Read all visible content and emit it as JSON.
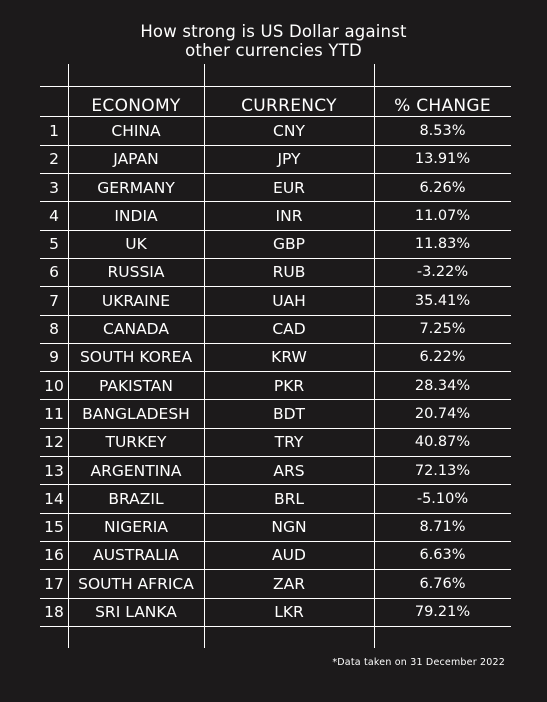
{
  "title_lines": [
    "How strong is US Dollar against",
    "other currencies YTD"
  ],
  "headers": {
    "economy": "ECONOMY",
    "currency": "CURRENCY",
    "change": "% CHANGE"
  },
  "rows": [
    {
      "n": "1",
      "economy": "CHINA",
      "currency": "CNY",
      "change": "8.53%"
    },
    {
      "n": "2",
      "economy": "JAPAN",
      "currency": "JPY",
      "change": "13.91%"
    },
    {
      "n": "3",
      "economy": "GERMANY",
      "currency": "EUR",
      "change": "6.26%"
    },
    {
      "n": "4",
      "economy": "INDIA",
      "currency": "INR",
      "change": "11.07%"
    },
    {
      "n": "5",
      "economy": "UK",
      "currency": "GBP",
      "change": "11.83%"
    },
    {
      "n": "6",
      "economy": "RUSSIA",
      "currency": "RUB",
      "change": "-3.22%"
    },
    {
      "n": "7",
      "economy": "UKRAINE",
      "currency": "UAH",
      "change": "35.41%"
    },
    {
      "n": "8",
      "economy": "CANADA",
      "currency": "CAD",
      "change": "7.25%"
    },
    {
      "n": "9",
      "economy": "SOUTH KOREA",
      "currency": "KRW",
      "change": "6.22%"
    },
    {
      "n": "10",
      "economy": "PAKISTAN",
      "currency": "PKR",
      "change": "28.34%"
    },
    {
      "n": "11",
      "economy": "BANGLADESH",
      "currency": "BDT",
      "change": "20.74%"
    },
    {
      "n": "12",
      "economy": "TURKEY",
      "currency": "TRY",
      "change": "40.87%"
    },
    {
      "n": "13",
      "economy": "ARGENTINA",
      "currency": "ARS",
      "change": "72.13%"
    },
    {
      "n": "14",
      "economy": "BRAZIL",
      "currency": "BRL",
      "change": "-5.10%"
    },
    {
      "n": "15",
      "economy": "NIGERIA",
      "currency": "NGN",
      "change": "8.71%"
    },
    {
      "n": "16",
      "economy": "AUSTRALIA",
      "currency": "AUD",
      "change": "6.63%"
    },
    {
      "n": "17",
      "economy": "SOUTH AFRICA",
      "currency": "ZAR",
      "change": "6.76%"
    },
    {
      "n": "18",
      "economy": "SRI LANKA",
      "currency": "LKR",
      "change": "79.21%"
    }
  ],
  "footnote": "*Data  taken on 31 December  2022",
  "colors": {
    "background": "#1c1a1b",
    "text": "#ffffff",
    "lines": "#ffffff"
  },
  "chart_data": {
    "type": "table",
    "title": "How strong is US Dollar against other currencies YTD",
    "columns": [
      "",
      "ECONOMY",
      "CURRENCY",
      "% CHANGE"
    ],
    "categories": [
      "CHINA",
      "JAPAN",
      "GERMANY",
      "INDIA",
      "UK",
      "RUSSIA",
      "UKRAINE",
      "CANADA",
      "SOUTH KOREA",
      "PAKISTAN",
      "BANGLADESH",
      "TURKEY",
      "ARGENTINA",
      "BRAZIL",
      "NIGERIA",
      "AUSTRALIA",
      "SOUTH AFRICA",
      "SRI LANKA"
    ],
    "currencies": [
      "CNY",
      "JPY",
      "EUR",
      "INR",
      "GBP",
      "RUB",
      "UAH",
      "CAD",
      "KRW",
      "PKR",
      "BDT",
      "TRY",
      "ARS",
      "BRL",
      "NGN",
      "AUD",
      "ZAR",
      "LKR"
    ],
    "values": [
      8.53,
      13.91,
      6.26,
      11.07,
      11.83,
      -3.22,
      35.41,
      7.25,
      6.22,
      28.34,
      20.74,
      40.87,
      72.13,
      -5.1,
      8.71,
      6.63,
      6.76,
      79.21
    ],
    "unit": "%",
    "annotations": [
      "*Data  taken on 31 December  2022"
    ]
  }
}
